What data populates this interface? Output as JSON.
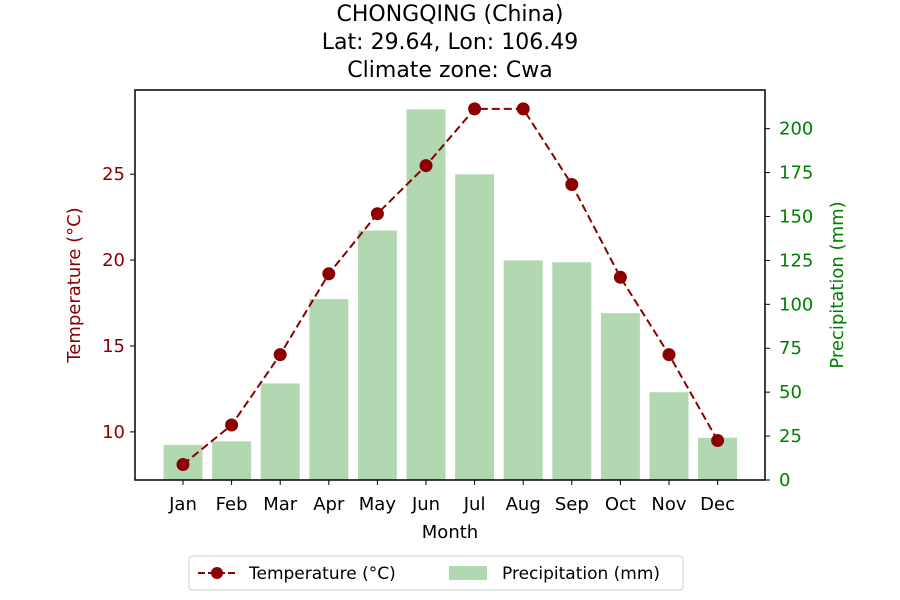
{
  "chart_data": {
    "type": "bar+line",
    "title_lines": [
      "CHONGQING (China)",
      "Lat: 29.64, Lon: 106.49",
      "Climate zone: Cwa"
    ],
    "xlabel": "Month",
    "ylabel_left": "Temperature (°C)",
    "ylabel_right": "Precipitation (mm)",
    "categories": [
      "Jan",
      "Feb",
      "Mar",
      "Apr",
      "May",
      "Jun",
      "Jul",
      "Aug",
      "Sep",
      "Oct",
      "Nov",
      "Dec"
    ],
    "temperature": {
      "name": "Temperature (°C)",
      "values": [
        8.1,
        10.4,
        14.5,
        19.2,
        22.7,
        25.5,
        28.8,
        28.8,
        24.4,
        19.0,
        14.5,
        9.5
      ],
      "ylim": [
        7.2,
        29.9
      ],
      "ticks": [
        10,
        15,
        20,
        25
      ],
      "color": "#8b0000"
    },
    "precipitation": {
      "name": "Precipitation (mm)",
      "values": [
        20,
        22,
        55,
        103,
        142,
        211,
        174,
        125,
        124,
        95,
        50,
        24
      ],
      "ylim": [
        0,
        222
      ],
      "ticks": [
        0,
        25,
        50,
        75,
        100,
        125,
        150,
        175,
        200
      ],
      "color": "#b2d8b2",
      "tick_color": "#008000"
    },
    "legend": {
      "placement": "bottom-center",
      "entries": [
        "Temperature (°C)",
        "Precipitation (mm)"
      ]
    },
    "grid": false
  }
}
